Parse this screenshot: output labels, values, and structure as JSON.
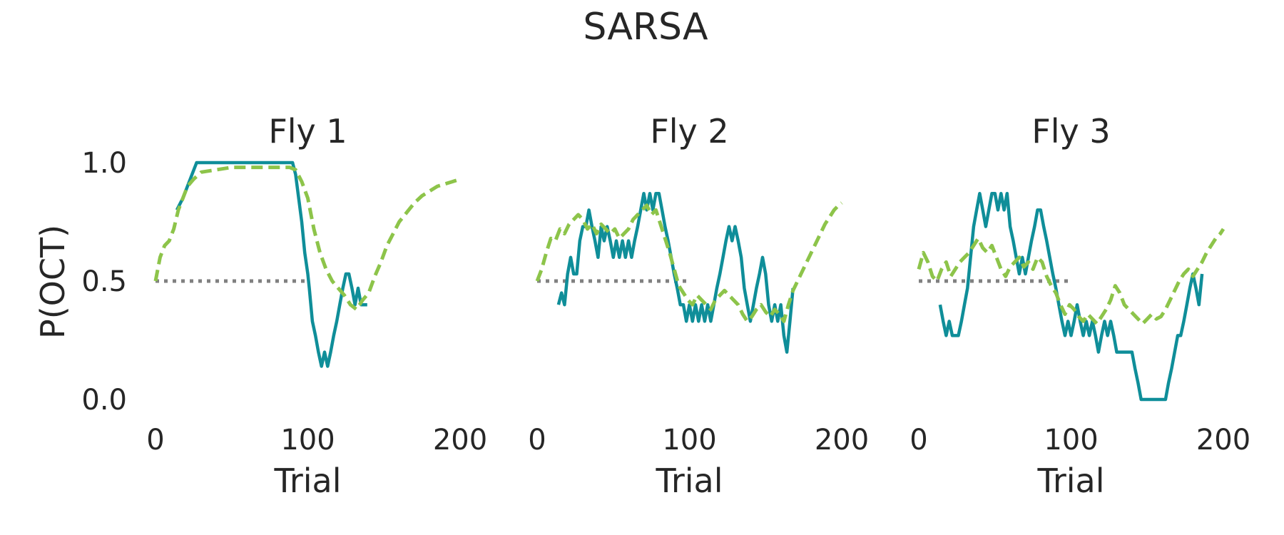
{
  "chart_data": {
    "type": "line",
    "title": "SARSA",
    "ylabel": "P(OCT)",
    "ylim": [
      0,
      1
    ],
    "reference_line": 0.5,
    "colors": {
      "series_a": "#0f8e99",
      "series_b": "#8dc44a",
      "reference": "#808080",
      "text": "#262626"
    },
    "panels": [
      {
        "title": "Fly 1",
        "xlabel": "Trial",
        "xlim": [
          0,
          200
        ],
        "xticks": [
          "0",
          "100",
          "200"
        ],
        "yticks": [
          "0.0",
          "0.5",
          "1.0"
        ],
        "series": [
          {
            "style": "solid",
            "x": [
              14,
              18,
              21,
              24,
              27,
              30,
              35,
              40,
              50,
              60,
              70,
              80,
              85,
              90,
              92,
              94,
              96,
              98,
              100,
              101,
              103,
              105,
              107,
              109,
              111,
              113,
              115,
              117,
              119,
              121,
              123,
              125,
              127,
              129,
              131,
              133,
              135,
              137,
              139
            ],
            "y": [
              0.8,
              0.85,
              0.9,
              0.95,
              1.0,
              1.0,
              1.0,
              1.0,
              1.0,
              1.0,
              1.0,
              1.0,
              1.0,
              1.0,
              0.95,
              0.85,
              0.75,
              0.62,
              0.53,
              0.47,
              0.33,
              0.27,
              0.2,
              0.14,
              0.2,
              0.14,
              0.2,
              0.27,
              0.33,
              0.4,
              0.47,
              0.53,
              0.53,
              0.47,
              0.4,
              0.47,
              0.4,
              0.4,
              0.4
            ]
          },
          {
            "style": "dashed",
            "x": [
              0,
              3,
              6,
              9,
              12,
              15,
              18,
              21,
              25,
              30,
              40,
              50,
              60,
              70,
              80,
              88,
              92,
              96,
              100,
              104,
              108,
              112,
              116,
              120,
              124,
              128,
              132,
              136,
              140,
              144,
              148,
              152,
              156,
              160,
              165,
              170,
              175,
              180,
              185,
              190,
              195,
              200
            ],
            "y": [
              0.5,
              0.6,
              0.65,
              0.67,
              0.72,
              0.8,
              0.85,
              0.9,
              0.93,
              0.96,
              0.97,
              0.98,
              0.98,
              0.98,
              0.98,
              0.98,
              0.97,
              0.92,
              0.85,
              0.72,
              0.62,
              0.55,
              0.5,
              0.47,
              0.44,
              0.4,
              0.38,
              0.42,
              0.45,
              0.52,
              0.58,
              0.65,
              0.7,
              0.75,
              0.79,
              0.83,
              0.86,
              0.88,
              0.9,
              0.91,
              0.92,
              0.93
            ]
          }
        ]
      },
      {
        "title": "Fly 2",
        "xlabel": "Trial",
        "xlim": [
          0,
          200
        ],
        "xticks": [
          "0",
          "100",
          "200"
        ],
        "yticks": [],
        "series": [
          {
            "style": "solid",
            "x": [
              14,
              16,
              18,
              20,
              22,
              24,
              26,
              28,
              30,
              32,
              34,
              36,
              38,
              40,
              42,
              44,
              46,
              48,
              50,
              52,
              54,
              56,
              58,
              60,
              62,
              64,
              66,
              68,
              70,
              72,
              74,
              76,
              78,
              80,
              82,
              84,
              86,
              88,
              90,
              92,
              94,
              96,
              98,
              100,
              102,
              104,
              106,
              108,
              110,
              112,
              114,
              116,
              118,
              120,
              122,
              124,
              126,
              128,
              130,
              132,
              134,
              136,
              138,
              140,
              142,
              144,
              146,
              148,
              150,
              152,
              154,
              156,
              158,
              160,
              162,
              164,
              166,
              168
            ],
            "y": [
              0.4,
              0.45,
              0.4,
              0.53,
              0.6,
              0.53,
              0.53,
              0.67,
              0.73,
              0.73,
              0.8,
              0.73,
              0.67,
              0.6,
              0.73,
              0.67,
              0.73,
              0.67,
              0.6,
              0.67,
              0.6,
              0.67,
              0.6,
              0.67,
              0.6,
              0.67,
              0.73,
              0.8,
              0.87,
              0.8,
              0.87,
              0.8,
              0.87,
              0.87,
              0.8,
              0.73,
              0.67,
              0.6,
              0.53,
              0.47,
              0.4,
              0.4,
              0.33,
              0.4,
              0.33,
              0.4,
              0.33,
              0.4,
              0.33,
              0.4,
              0.33,
              0.4,
              0.47,
              0.53,
              0.6,
              0.67,
              0.73,
              0.67,
              0.73,
              0.67,
              0.6,
              0.47,
              0.4,
              0.33,
              0.4,
              0.47,
              0.53,
              0.6,
              0.53,
              0.4,
              0.33,
              0.4,
              0.33,
              0.4,
              0.27,
              0.2,
              0.33,
              0.47
            ]
          },
          {
            "style": "dashed",
            "x": [
              0,
              3,
              6,
              9,
              12,
              15,
              18,
              21,
              24,
              27,
              30,
              33,
              36,
              39,
              42,
              45,
              48,
              51,
              54,
              57,
              60,
              63,
              66,
              69,
              72,
              75,
              78,
              81,
              84,
              87,
              90,
              93,
              96,
              99,
              102,
              105,
              108,
              111,
              114,
              117,
              120,
              123,
              126,
              129,
              132,
              135,
              138,
              141,
              144,
              147,
              150,
              153,
              156,
              159,
              162,
              165,
              168,
              171,
              174,
              177,
              180,
              183,
              186,
              189,
              192,
              195,
              198,
              200
            ],
            "y": [
              0.5,
              0.55,
              0.62,
              0.68,
              0.67,
              0.72,
              0.7,
              0.74,
              0.76,
              0.78,
              0.76,
              0.72,
              0.74,
              0.7,
              0.74,
              0.72,
              0.7,
              0.72,
              0.68,
              0.7,
              0.72,
              0.76,
              0.78,
              0.8,
              0.82,
              0.78,
              0.8,
              0.74,
              0.68,
              0.62,
              0.55,
              0.48,
              0.45,
              0.42,
              0.4,
              0.44,
              0.42,
              0.4,
              0.38,
              0.42,
              0.44,
              0.46,
              0.44,
              0.42,
              0.4,
              0.36,
              0.33,
              0.35,
              0.38,
              0.4,
              0.37,
              0.35,
              0.38,
              0.36,
              0.33,
              0.4,
              0.46,
              0.5,
              0.54,
              0.58,
              0.62,
              0.66,
              0.7,
              0.74,
              0.77,
              0.8,
              0.82,
              0.83
            ]
          }
        ]
      },
      {
        "title": "Fly 3",
        "xlabel": "Trial",
        "xlim": [
          0,
          200
        ],
        "xticks": [
          "0",
          "100",
          "200"
        ],
        "yticks": [],
        "series": [
          {
            "style": "solid",
            "x": [
              14,
              16,
              18,
              20,
              22,
              24,
              26,
              28,
              30,
              32,
              34,
              36,
              38,
              40,
              42,
              44,
              46,
              48,
              50,
              52,
              54,
              56,
              58,
              60,
              62,
              64,
              66,
              68,
              70,
              72,
              74,
              76,
              78,
              80,
              82,
              84,
              86,
              88,
              90,
              92,
              94,
              96,
              98,
              100,
              102,
              104,
              106,
              108,
              110,
              112,
              114,
              116,
              118,
              120,
              122,
              124,
              126,
              128,
              130,
              132,
              134,
              136,
              138,
              140,
              142,
              144,
              146,
              148,
              150,
              152,
              154,
              156,
              158,
              160,
              162,
              164,
              166,
              168,
              170,
              172,
              174,
              176,
              178,
              180,
              182,
              184,
              186
            ],
            "y": [
              0.4,
              0.33,
              0.27,
              0.33,
              0.27,
              0.27,
              0.27,
              0.33,
              0.4,
              0.47,
              0.6,
              0.73,
              0.8,
              0.87,
              0.8,
              0.73,
              0.8,
              0.87,
              0.87,
              0.8,
              0.87,
              0.8,
              0.87,
              0.73,
              0.67,
              0.6,
              0.53,
              0.6,
              0.53,
              0.6,
              0.67,
              0.73,
              0.8,
              0.8,
              0.73,
              0.67,
              0.6,
              0.53,
              0.47,
              0.4,
              0.33,
              0.27,
              0.33,
              0.27,
              0.33,
              0.4,
              0.33,
              0.27,
              0.33,
              0.27,
              0.33,
              0.27,
              0.2,
              0.27,
              0.33,
              0.27,
              0.33,
              0.27,
              0.2,
              0.2,
              0.2,
              0.2,
              0.2,
              0.2,
              0.13,
              0.07,
              0.0,
              0.0,
              0.0,
              0.0,
              0.0,
              0.0,
              0.0,
              0.0,
              0.0,
              0.07,
              0.13,
              0.2,
              0.27,
              0.27,
              0.33,
              0.4,
              0.47,
              0.53,
              0.47,
              0.4,
              0.53
            ]
          },
          {
            "style": "dashed",
            "x": [
              0,
              3,
              6,
              9,
              12,
              15,
              18,
              21,
              24,
              27,
              30,
              33,
              36,
              39,
              42,
              45,
              48,
              51,
              54,
              57,
              60,
              63,
              66,
              69,
              72,
              75,
              78,
              81,
              84,
              87,
              90,
              93,
              96,
              99,
              102,
              105,
              108,
              111,
              114,
              117,
              120,
              123,
              126,
              129,
              132,
              135,
              138,
              141,
              144,
              147,
              150,
              153,
              156,
              159,
              162,
              165,
              168,
              171,
              174,
              177,
              180,
              183,
              186,
              189,
              192,
              195,
              198,
              200
            ],
            "y": [
              0.55,
              0.62,
              0.58,
              0.52,
              0.5,
              0.55,
              0.58,
              0.52,
              0.55,
              0.58,
              0.6,
              0.62,
              0.65,
              0.68,
              0.64,
              0.62,
              0.65,
              0.6,
              0.55,
              0.52,
              0.56,
              0.58,
              0.6,
              0.56,
              0.58,
              0.55,
              0.6,
              0.58,
              0.52,
              0.48,
              0.45,
              0.4,
              0.36,
              0.4,
              0.38,
              0.35,
              0.33,
              0.36,
              0.34,
              0.32,
              0.35,
              0.38,
              0.42,
              0.48,
              0.45,
              0.4,
              0.38,
              0.36,
              0.34,
              0.32,
              0.34,
              0.36,
              0.34,
              0.35,
              0.38,
              0.42,
              0.46,
              0.5,
              0.53,
              0.55,
              0.52,
              0.55,
              0.58,
              0.62,
              0.65,
              0.68,
              0.7,
              0.72
            ]
          }
        ]
      }
    ]
  }
}
